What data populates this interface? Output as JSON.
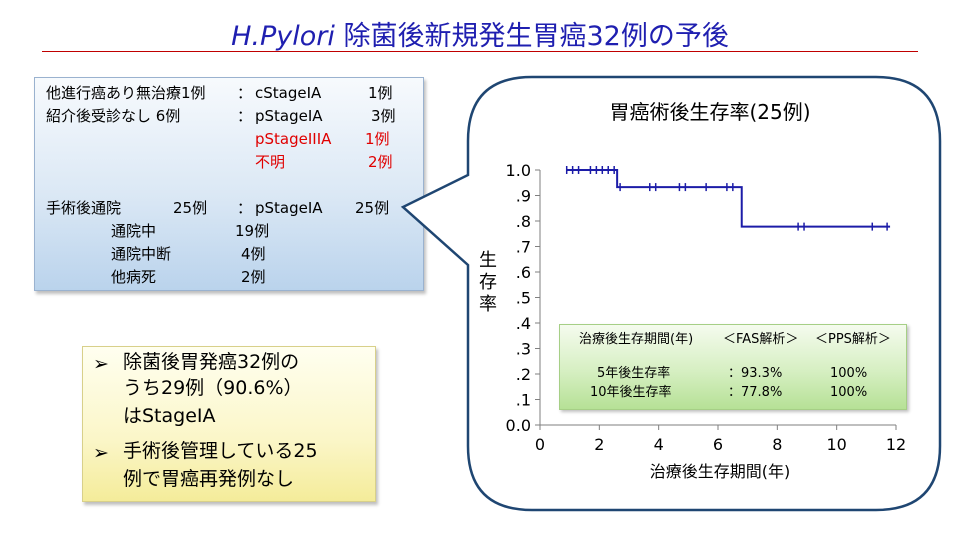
{
  "slide": {
    "title_italic": "H.Pylori",
    "title_rest": " 除菌後新規発生胃癌32例の予後"
  },
  "info": {
    "row1": {
      "label": "他進行癌あり無治療1例",
      "colon": "：",
      "stage": "cStageIA",
      "count": "1例"
    },
    "row2": {
      "label": "紹介後受診なし  6例",
      "colon": "：",
      "stage": "pStageIA",
      "count": "3例"
    },
    "row3": {
      "stage": "pStageIIIA",
      "count": "1例"
    },
    "row4": {
      "stage": "不明",
      "count": "2例"
    },
    "row5": {
      "label": "手術後通院",
      "num": "25例",
      "colon": "：",
      "stage": "pStageIA",
      "count": "25例"
    },
    "sub": [
      {
        "label": "通院中",
        "count": "19例"
      },
      {
        "label": "通院中断",
        "count": "4例"
      },
      {
        "label": "他病死",
        "count": "2例"
      }
    ],
    "highlight_color": "#e00000"
  },
  "notes": {
    "bullet": "➢",
    "item1_lines": [
      "除菌後胃発癌32例の",
      "うち29例（90.6%）",
      "はStageIA"
    ],
    "item2_lines": [
      "手術後管理している25",
      "例で胃癌再発例なし"
    ]
  },
  "stats": {
    "header_period": "治療後生存期間(年)",
    "header_fas": "＜FAS解析＞",
    "header_pps": "＜PPS解析＞",
    "rows": [
      {
        "label": "5年後生存率",
        "fas": "：93.3%",
        "pps": "100%"
      },
      {
        "label": "10年後生存率",
        "fas": "：77.8%",
        "pps": "100%"
      }
    ]
  },
  "chart_data": {
    "type": "line",
    "subtype": "kaplan-meier",
    "title": "胃癌術後生存率(25例)",
    "xlabel": "治療後生存期間(年)",
    "ylabel": "生存率",
    "xlim": [
      0,
      12
    ],
    "ylim": [
      0,
      1.0
    ],
    "x_ticks": [
      "0",
      "2",
      "4",
      "6",
      "8",
      "10",
      "12"
    ],
    "y_ticks": [
      "0.0",
      ".1",
      ".2",
      ".3",
      ".4",
      ".5",
      ".6",
      ".7",
      ".8",
      ".9",
      "1.0"
    ],
    "grid": false,
    "series": [
      {
        "color": "#1c1ca8",
        "step_x": [
          0.9,
          2.6,
          2.6,
          6.8,
          6.8,
          11.8
        ],
        "step_y": [
          1.0,
          1.0,
          0.933,
          0.933,
          0.778,
          0.778
        ],
        "censored": [
          {
            "x": 0.9,
            "y": 1.0
          },
          {
            "x": 1.1,
            "y": 1.0
          },
          {
            "x": 1.3,
            "y": 1.0
          },
          {
            "x": 1.7,
            "y": 1.0
          },
          {
            "x": 1.9,
            "y": 1.0
          },
          {
            "x": 2.1,
            "y": 1.0
          },
          {
            "x": 2.3,
            "y": 1.0
          },
          {
            "x": 2.5,
            "y": 1.0
          },
          {
            "x": 2.7,
            "y": 0.933
          },
          {
            "x": 3.7,
            "y": 0.933
          },
          {
            "x": 3.9,
            "y": 0.933
          },
          {
            "x": 4.7,
            "y": 0.933
          },
          {
            "x": 4.9,
            "y": 0.933
          },
          {
            "x": 5.6,
            "y": 0.933
          },
          {
            "x": 6.3,
            "y": 0.933
          },
          {
            "x": 6.5,
            "y": 0.933
          },
          {
            "x": 8.7,
            "y": 0.778
          },
          {
            "x": 8.9,
            "y": 0.778
          },
          {
            "x": 11.2,
            "y": 0.778
          },
          {
            "x": 11.7,
            "y": 0.778
          }
        ]
      }
    ]
  }
}
